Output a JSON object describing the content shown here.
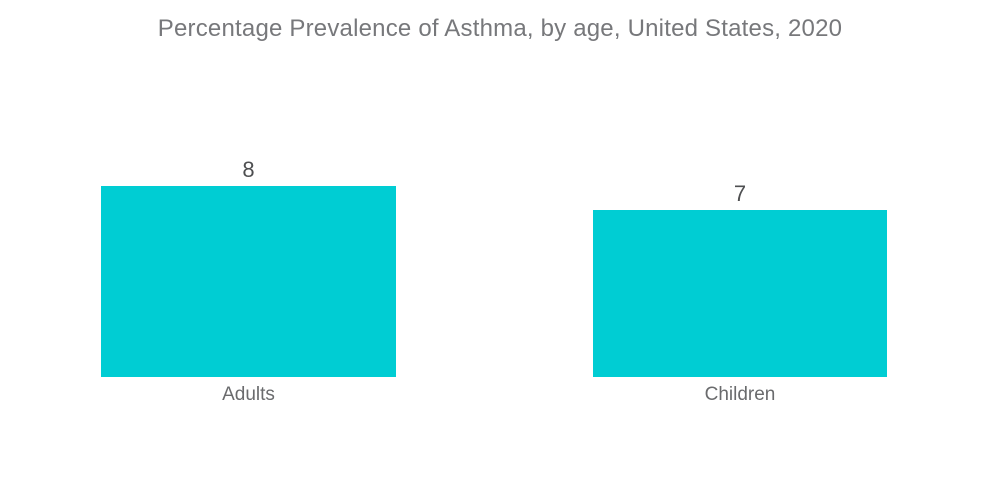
{
  "chart_data": {
    "type": "bar",
    "title": "Percentage Prevalence of Asthma, by age, United States, 2020",
    "categories": [
      "Adults",
      "Children"
    ],
    "values": [
      8,
      7
    ],
    "xlabel": "",
    "ylabel": "",
    "ylim": [
      0,
      8
    ],
    "grid": false,
    "legend": "none",
    "axes_visible": false,
    "value_labels_position": "above-bars",
    "colors": {
      "bar": "#00CDD3",
      "title_text": "#77787B",
      "value_label_text": "#4E4F51",
      "category_label_text": "#6A6B6D",
      "background": "#FFFFFF"
    }
  }
}
